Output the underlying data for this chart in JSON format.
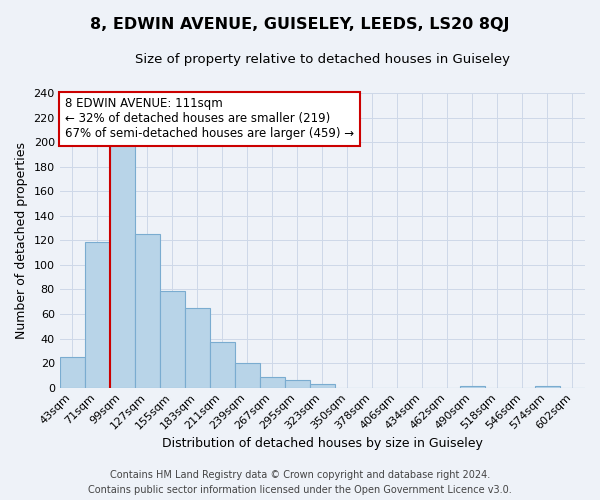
{
  "title": "8, EDWIN AVENUE, GUISELEY, LEEDS, LS20 8QJ",
  "subtitle": "Size of property relative to detached houses in Guiseley",
  "xlabel": "Distribution of detached houses by size in Guiseley",
  "ylabel": "Number of detached properties",
  "bar_labels": [
    "43sqm",
    "71sqm",
    "99sqm",
    "127sqm",
    "155sqm",
    "183sqm",
    "211sqm",
    "239sqm",
    "267sqm",
    "295sqm",
    "323sqm",
    "350sqm",
    "378sqm",
    "406sqm",
    "434sqm",
    "462sqm",
    "490sqm",
    "518sqm",
    "546sqm",
    "574sqm",
    "602sqm"
  ],
  "bar_values": [
    25,
    119,
    198,
    125,
    79,
    65,
    37,
    20,
    9,
    6,
    3,
    0,
    0,
    0,
    0,
    0,
    1,
    0,
    0,
    1,
    0
  ],
  "bar_color": "#b8d4e8",
  "bar_edge_color": "#7aacd0",
  "red_line_bar_index": 2,
  "ylim": [
    0,
    240
  ],
  "yticks": [
    0,
    20,
    40,
    60,
    80,
    100,
    120,
    140,
    160,
    180,
    200,
    220,
    240
  ],
  "annotation_title": "8 EDWIN AVENUE: 111sqm",
  "annotation_line1": "← 32% of detached houses are smaller (219)",
  "annotation_line2": "67% of semi-detached houses are larger (459) →",
  "annotation_box_facecolor": "#ffffff",
  "annotation_box_edgecolor": "#cc0000",
  "red_line_color": "#cc0000",
  "grid_color": "#cdd8e8",
  "background_color": "#eef2f8",
  "footer_line1": "Contains HM Land Registry data © Crown copyright and database right 2024.",
  "footer_line2": "Contains public sector information licensed under the Open Government Licence v3.0.",
  "title_fontsize": 11.5,
  "subtitle_fontsize": 9.5,
  "xlabel_fontsize": 9,
  "ylabel_fontsize": 9,
  "tick_fontsize": 8,
  "annotation_fontsize": 8.5,
  "footer_fontsize": 7
}
